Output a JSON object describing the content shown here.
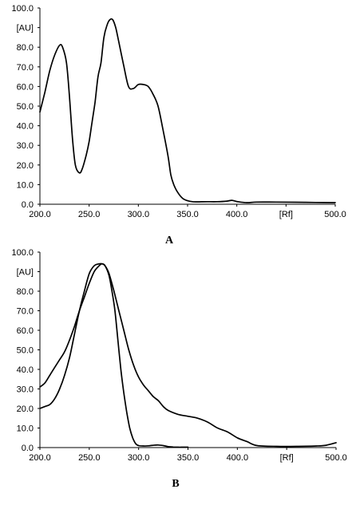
{
  "chart_data": [
    {
      "type": "line",
      "panel_label": "A",
      "ylim": [
        0,
        100
      ],
      "xlim": [
        200,
        500
      ],
      "y_ticks": [
        "0.0",
        "10.0",
        "20.0",
        "30.0",
        "40.0",
        "50.0",
        "60.0",
        "70.0",
        "80.0",
        "90.0",
        "100.0"
      ],
      "y_unit_label": "[AU]",
      "x_ticks": [
        "200.0",
        "250.0",
        "300.0",
        "350.0",
        "400.0",
        "[Rf]",
        "500.0"
      ],
      "grid": false,
      "series": [
        {
          "x": [
            200,
            205,
            210,
            215,
            220,
            223,
            227,
            230,
            233,
            236,
            240,
            243,
            247,
            250,
            253,
            256,
            259,
            262,
            265,
            268,
            271,
            274,
            277,
            280,
            285,
            290,
            295,
            300,
            305,
            310,
            315,
            320,
            325,
            330,
            333,
            336,
            340,
            345,
            350,
            355,
            360,
            370,
            380,
            390,
            395,
            400,
            410,
            420,
            440,
            460,
            480,
            500
          ],
          "y": [
            47,
            57,
            68,
            76,
            81,
            80,
            72,
            55,
            34,
            20,
            16,
            18,
            25,
            32,
            42,
            52,
            65,
            72,
            85,
            91,
            94,
            94,
            90,
            83,
            71,
            60,
            59,
            61,
            61,
            60,
            56,
            50,
            38,
            25,
            15,
            10,
            6,
            3,
            1.8,
            1.3,
            1.2,
            1.3,
            1.3,
            1.6,
            2.0,
            1.4,
            0.8,
            1.1,
            1.1,
            1.0,
            0.9,
            0.8
          ]
        }
      ]
    },
    {
      "type": "line",
      "panel_label": "B",
      "ylim": [
        0,
        100
      ],
      "xlim": [
        200,
        500
      ],
      "y_ticks": [
        "0.0",
        "10.0",
        "20.0",
        "30.0",
        "40.0",
        "50.0",
        "60.0",
        "70.0",
        "80.0",
        "90.0",
        "100.0"
      ],
      "y_unit_label": "[AU]",
      "x_ticks": [
        "200.0",
        "250.0",
        "300.0",
        "350.0",
        "400.0",
        "[Rf]",
        "500.0"
      ],
      "grid": false,
      "series": [
        {
          "x": [
            200,
            205,
            210,
            215,
            220,
            225,
            230,
            235,
            240,
            245,
            250,
            255,
            260,
            263,
            266,
            270,
            275,
            280,
            285,
            290,
            295,
            300,
            305,
            310,
            315,
            320,
            325,
            330,
            340,
            350,
            360,
            370,
            380,
            390,
            400,
            410,
            420,
            440,
            460,
            480,
            490,
            500
          ],
          "y": [
            31,
            33,
            37,
            41,
            45,
            49,
            55,
            62,
            70,
            77,
            84,
            90,
            93,
            94,
            93,
            89,
            80,
            70,
            60,
            50,
            42,
            36,
            32,
            29,
            26,
            24,
            21,
            19,
            17,
            16,
            15,
            13,
            10,
            8,
            5,
            3,
            1,
            0.6,
            0.6,
            0.8,
            1.2,
            2.5
          ]
        },
        {
          "x": [
            200,
            205,
            210,
            215,
            220,
            225,
            230,
            235,
            240,
            245,
            250,
            255,
            260,
            263,
            266,
            270,
            273,
            276,
            279,
            282,
            285,
            288,
            291,
            294,
            297,
            300,
            305,
            310,
            315,
            320,
            325,
            330,
            335,
            340,
            345,
            350
          ],
          "y": [
            20,
            21,
            22,
            25,
            30,
            37,
            46,
            58,
            70,
            80,
            89,
            93,
            94,
            94,
            93,
            88,
            80,
            70,
            55,
            40,
            28,
            18,
            10,
            5,
            2,
            1,
            0.8,
            0.9,
            1.2,
            1.3,
            1.0,
            0.5,
            0.3,
            0.2,
            0.2,
            0.2
          ]
        }
      ]
    }
  ]
}
